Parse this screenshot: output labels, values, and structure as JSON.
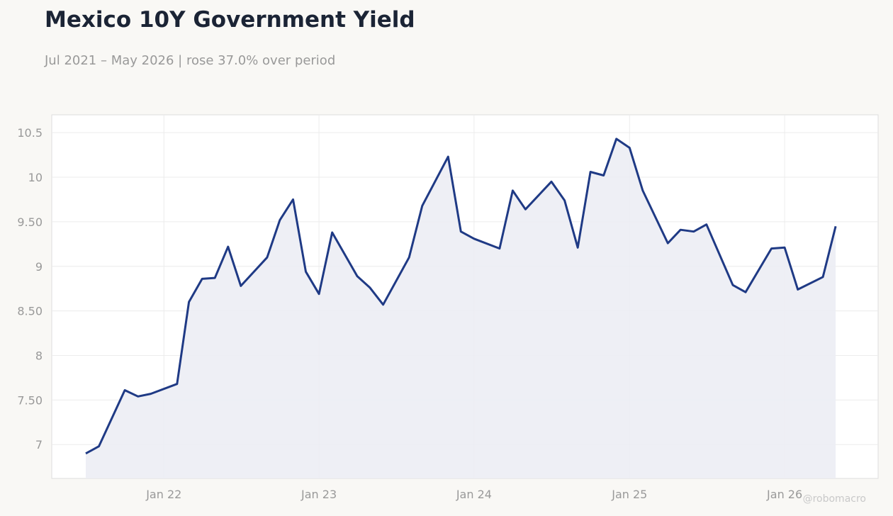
{
  "header": {
    "title": "Mexico 10Y Government Yield",
    "subtitle": "Jul 2021 – May 2026 | rose 37.0% over period"
  },
  "watermark": "@robomacro",
  "colors": {
    "background": "#f9f8f5",
    "plot_background": "#ffffff",
    "line": "#1f3a85",
    "area_fill": "#ecedf4",
    "title": "#1b2435",
    "muted_text": "#999999",
    "grid": "#ececec"
  },
  "chart_data": {
    "type": "area",
    "title": "Mexico 10Y Government Yield",
    "subtitle": "Jul 2021 – May 2026 | rose 37.0% over period",
    "xlabel": "",
    "ylabel": "",
    "grid": true,
    "legend": "none",
    "xlim": [
      "2021-04-12",
      "2026-08-09"
    ],
    "ylim": [
      6.62,
      10.7
    ],
    "x_ticks": [
      {
        "date": "2022-01-01",
        "label": "Jan 22"
      },
      {
        "date": "2023-01-01",
        "label": "Jan 23"
      },
      {
        "date": "2024-01-01",
        "label": "Jan 24"
      },
      {
        "date": "2025-01-01",
        "label": "Jan 25"
      },
      {
        "date": "2026-01-01",
        "label": "Jan 26"
      }
    ],
    "y_ticks": [
      {
        "value": 7,
        "label": "7"
      },
      {
        "value": 7.5,
        "label": "7.50"
      },
      {
        "value": 8,
        "label": "8"
      },
      {
        "value": 8.5,
        "label": "8.50"
      },
      {
        "value": 9,
        "label": "9"
      },
      {
        "value": 9.5,
        "label": "9.50"
      },
      {
        "value": 10,
        "label": "10"
      },
      {
        "value": 10.5,
        "label": "10.5"
      }
    ],
    "series": [
      {
        "x": [
          "2021-07-01",
          "2021-08-01",
          "2021-10-01",
          "2021-11-01",
          "2021-12-01",
          "2022-02-01",
          "2022-03-01",
          "2022-04-01",
          "2022-05-01",
          "2022-06-01",
          "2022-07-01",
          "2022-09-01",
          "2022-10-01",
          "2022-11-01",
          "2022-12-01",
          "2023-01-01",
          "2023-02-01",
          "2023-04-01",
          "2023-05-01",
          "2023-06-01",
          "2023-08-01",
          "2023-09-01",
          "2023-11-01",
          "2023-12-01",
          "2024-01-01",
          "2024-03-01",
          "2024-04-01",
          "2024-05-01",
          "2024-07-01",
          "2024-08-01",
          "2024-09-01",
          "2024-10-01",
          "2024-11-01",
          "2024-12-01",
          "2025-01-01",
          "2025-02-01",
          "2025-04-01",
          "2025-05-01",
          "2025-06-01",
          "2025-07-01",
          "2025-09-01",
          "2025-10-01",
          "2025-12-01",
          "2026-01-01",
          "2026-02-01",
          "2026-04-01",
          "2026-05-01"
        ],
        "values": [
          6.9,
          6.98,
          7.61,
          7.54,
          7.57,
          7.68,
          8.6,
          8.86,
          8.87,
          9.22,
          8.78,
          9.1,
          9.52,
          9.75,
          8.94,
          8.69,
          9.38,
          8.89,
          8.76,
          8.57,
          9.1,
          9.68,
          10.23,
          9.39,
          9.31,
          9.2,
          9.85,
          9.64,
          9.95,
          9.74,
          9.21,
          10.06,
          10.02,
          10.43,
          10.33,
          9.85,
          9.26,
          9.41,
          9.39,
          9.47,
          8.79,
          8.71,
          9.2,
          9.21,
          8.74,
          8.88,
          9.45
        ]
      }
    ]
  }
}
